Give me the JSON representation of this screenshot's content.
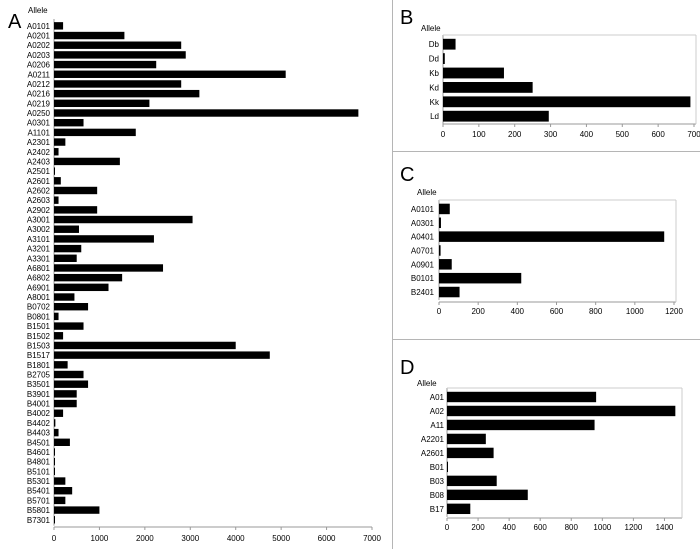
{
  "chart_data": [
    {
      "panel": "A",
      "type": "bar",
      "orientation": "horizontal",
      "xlabel": "",
      "ylabel": "Allele",
      "xlim": [
        0,
        7000
      ],
      "xticks": [
        0,
        1000,
        2000,
        3000,
        4000,
        5000,
        6000,
        7000
      ],
      "categories": [
        "A0101",
        "A0201",
        "A0202",
        "A0203",
        "A0206",
        "A0211",
        "A0212",
        "A0216",
        "A0219",
        "A0250",
        "A0301",
        "A1101",
        "A2301",
        "A2402",
        "A2403",
        "A2501",
        "A2601",
        "A2602",
        "A2603",
        "A2902",
        "A3001",
        "A3002",
        "A3101",
        "A3201",
        "A3301",
        "A6801",
        "A6802",
        "A6901",
        "A8001",
        "B0702",
        "B0801",
        "B1501",
        "B1502",
        "B1503",
        "B1517",
        "B1801",
        "B2705",
        "B3501",
        "B3901",
        "B4001",
        "B4002",
        "B4402",
        "B4403",
        "B4501",
        "B4601",
        "B4801",
        "B5101",
        "B5301",
        "B5401",
        "B5701",
        "B5801",
        "B7301"
      ],
      "values": [
        200,
        1550,
        2800,
        2900,
        2250,
        5100,
        2800,
        3200,
        2100,
        6700,
        650,
        1800,
        250,
        100,
        1450,
        20,
        150,
        950,
        100,
        950,
        3050,
        550,
        2200,
        600,
        500,
        2400,
        1500,
        1200,
        450,
        750,
        100,
        650,
        200,
        4000,
        4750,
        300,
        650,
        750,
        500,
        500,
        200,
        30,
        100,
        350,
        20,
        20,
        10,
        250,
        400,
        250,
        1000,
        10
      ],
      "grid": false
    },
    {
      "panel": "B",
      "type": "bar",
      "orientation": "horizontal",
      "xlabel": "",
      "ylabel": "Allele",
      "xlim": [
        0,
        700
      ],
      "xticks": [
        0,
        100,
        200,
        300,
        400,
        500,
        600,
        700
      ],
      "categories": [
        "Db",
        "Dd",
        "Kb",
        "Kd",
        "Kk",
        "Ld"
      ],
      "values": [
        35,
        5,
        170,
        250,
        690,
        295
      ],
      "grid": false
    },
    {
      "panel": "C",
      "type": "bar",
      "orientation": "horizontal",
      "xlabel": "",
      "ylabel": "Allele",
      "xlim": [
        0,
        1200
      ],
      "xticks": [
        0,
        200,
        400,
        600,
        800,
        1000,
        1200
      ],
      "categories": [
        "A0101",
        "A0301",
        "A0401",
        "A0701",
        "A0901",
        "B0101",
        "B2401"
      ],
      "values": [
        55,
        10,
        1150,
        8,
        65,
        420,
        105
      ],
      "grid": false
    },
    {
      "panel": "D",
      "type": "bar",
      "orientation": "horizontal",
      "xlabel": "",
      "ylabel": "Allele",
      "xlim": [
        0,
        1500
      ],
      "xticks": [
        0,
        200,
        400,
        600,
        800,
        1000,
        1200,
        1400
      ],
      "categories": [
        "A01",
        "A02",
        "A11",
        "A2201",
        "A2601",
        "B01",
        "B03",
        "B08",
        "B17"
      ],
      "values": [
        960,
        1470,
        950,
        250,
        300,
        5,
        320,
        520,
        150
      ],
      "grid": false
    }
  ],
  "colors": {
    "bar": "#000000",
    "axis": "#999999",
    "divider": "#b5b5b5",
    "text": "#000000"
  }
}
